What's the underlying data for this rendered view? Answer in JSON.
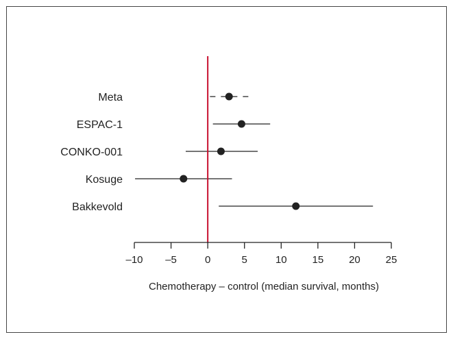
{
  "chart_data": {
    "type": "scatter",
    "title": "",
    "xlabel": "Chemotherapy – control (median survival, months)",
    "ylabel": "",
    "xlim": [
      -10,
      25
    ],
    "x_ticks": [
      -10,
      -5,
      0,
      5,
      10,
      15,
      20,
      25
    ],
    "x_tick_labels": [
      "–10",
      "–5",
      "0",
      "5",
      "10",
      "15",
      "20",
      "25"
    ],
    "reference_line": {
      "x": 0,
      "color": "#c8102e"
    },
    "grid": false,
    "legend": "none",
    "studies": [
      {
        "name": "Meta",
        "estimate": 2.9,
        "ci_low": 0.3,
        "ci_high": 5.7,
        "line_style": "dashed"
      },
      {
        "name": "ESPAC-1",
        "estimate": 4.6,
        "ci_low": 0.7,
        "ci_high": 8.5,
        "line_style": "solid"
      },
      {
        "name": "CONKO-001",
        "estimate": 1.8,
        "ci_low": -3.0,
        "ci_high": 6.8,
        "line_style": "solid"
      },
      {
        "name": "Kosuge",
        "estimate": -3.3,
        "ci_low": -9.9,
        "ci_high": 3.3,
        "line_style": "solid"
      },
      {
        "name": "Bakkevold",
        "estimate": 12.0,
        "ci_low": 1.5,
        "ci_high": 22.5,
        "line_style": "solid"
      }
    ]
  },
  "colors": {
    "reference_line": "#c8102e",
    "marks": "#222222",
    "frame": "#444444"
  }
}
